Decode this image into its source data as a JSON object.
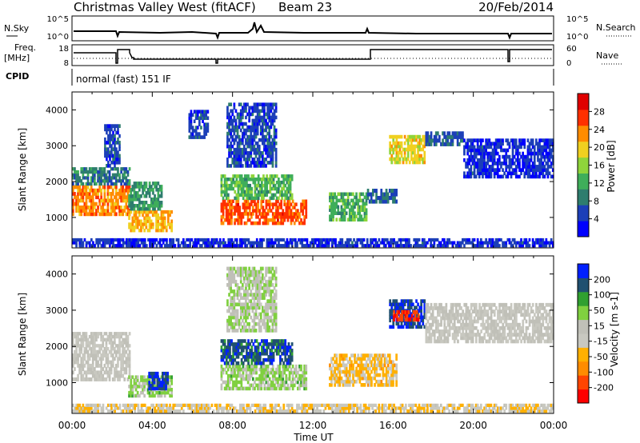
{
  "header": {
    "title": "Christmas Valley West (fitACF)",
    "beam": "Beam 23",
    "date": "20/Feb/2014"
  },
  "strips": {
    "nsky": {
      "left_label": "N.Sky",
      "left_ticks": [
        "10^5",
        "10^0"
      ],
      "right_label": "N.Search",
      "right_ticks": [
        "10^5",
        "10^0"
      ]
    },
    "freq": {
      "left_label": "Freq.",
      "left_unit": "[MHz]",
      "left_ticks": [
        "18",
        "8"
      ],
      "right_label": "Nave",
      "right_ticks": [
        "60",
        "0"
      ]
    },
    "cpid": {
      "label": "CPID",
      "value": "normal (fast) 151 IF"
    }
  },
  "x_axis": {
    "label": "Time UT",
    "ticks": [
      "00:00",
      "04:00",
      "08:00",
      "12:00",
      "16:00",
      "20:00",
      "00:00"
    ]
  },
  "colors": {
    "power_scale": [
      "#0000ff",
      "#1c3fb8",
      "#2e7d6e",
      "#3fae5a",
      "#8fd43b",
      "#f0d020",
      "#ff8c00",
      "#ff3000",
      "#e00000"
    ],
    "velocity_scale": [
      "#ff0000",
      "#ff4500",
      "#ff8c00",
      "#ffb000",
      "#c8c8c0",
      "#c0c0b8",
      "#80d040",
      "#30a030",
      "#205070",
      "#0020ff"
    ]
  },
  "chart_data": [
    {
      "type": "heatmap",
      "panel": "power",
      "ylabel": "Slant Range [km]",
      "y_ticks": [
        1000,
        2000,
        3000,
        4000
      ],
      "ylim": [
        150,
        4500
      ],
      "xlim_hours": [
        0,
        24
      ],
      "colorbar": {
        "label": "Power [dB]",
        "ticks": [
          "4",
          "8",
          "12",
          "16",
          "20",
          "24",
          "28"
        ],
        "range": [
          0,
          30
        ]
      },
      "regions": [
        {
          "t0": 0.0,
          "t1": 2.9,
          "r0": 1050,
          "r1": 1900,
          "v": 22
        },
        {
          "t0": 0.0,
          "t1": 2.9,
          "r0": 1900,
          "r1": 2400,
          "v": 8
        },
        {
          "t0": 1.6,
          "t1": 2.4,
          "r0": 2400,
          "r1": 3600,
          "v": 5
        },
        {
          "t0": 2.8,
          "t1": 5.0,
          "r0": 600,
          "r1": 1200,
          "v": 20
        },
        {
          "t0": 2.8,
          "t1": 4.5,
          "r0": 1200,
          "r1": 2000,
          "v": 10
        },
        {
          "t0": 5.8,
          "t1": 6.8,
          "r0": 3200,
          "r1": 4000,
          "v": 5
        },
        {
          "t0": 7.4,
          "t1": 11.7,
          "r0": 800,
          "r1": 1500,
          "v": 24
        },
        {
          "t0": 7.4,
          "t1": 11.0,
          "r0": 1500,
          "r1": 2200,
          "v": 12
        },
        {
          "t0": 7.7,
          "t1": 10.2,
          "r0": 2400,
          "r1": 4200,
          "v": 5
        },
        {
          "t0": 12.8,
          "t1": 14.7,
          "r0": 900,
          "r1": 1700,
          "v": 12
        },
        {
          "t0": 14.7,
          "t1": 16.2,
          "r0": 1400,
          "r1": 1800,
          "v": 6
        },
        {
          "t0": 15.8,
          "t1": 17.6,
          "r0": 2500,
          "r1": 3300,
          "v": 18
        },
        {
          "t0": 17.6,
          "t1": 19.5,
          "r0": 3000,
          "r1": 3400,
          "v": 6
        },
        {
          "t0": 19.5,
          "t1": 24.0,
          "r0": 2100,
          "r1": 3200,
          "v": 4
        },
        {
          "t0": 0.0,
          "t1": 24.0,
          "r0": 180,
          "r1": 420,
          "v": 4
        }
      ]
    },
    {
      "type": "heatmap",
      "panel": "velocity",
      "ylabel": "Slant Range [km]",
      "y_ticks": [
        1000,
        2000,
        3000,
        4000
      ],
      "ylim": [
        150,
        4500
      ],
      "xlim_hours": [
        0,
        24
      ],
      "colorbar": {
        "label": "Velocity [m s-1]",
        "ticks": [
          "-200",
          "-100",
          "-50",
          "-15",
          "15",
          "50",
          "100",
          "200"
        ],
        "range": [
          -250,
          250
        ]
      },
      "regions": [
        {
          "t0": 0.0,
          "t1": 2.9,
          "r0": 1050,
          "r1": 1900,
          "v": 0
        },
        {
          "t0": 0.0,
          "t1": 2.9,
          "r0": 1900,
          "r1": 2400,
          "v": 0
        },
        {
          "t0": 2.8,
          "t1": 5.0,
          "r0": 600,
          "r1": 1200,
          "v": 60
        },
        {
          "t0": 3.8,
          "t1": 4.8,
          "r0": 800,
          "r1": 1300,
          "v": 200
        },
        {
          "t0": 7.4,
          "t1": 11.7,
          "r0": 800,
          "r1": 1500,
          "v": 60
        },
        {
          "t0": 7.4,
          "t1": 11.0,
          "r0": 1500,
          "r1": 2200,
          "v": 180
        },
        {
          "t0": 7.7,
          "t1": 10.2,
          "r0": 2400,
          "r1": 4200,
          "v": 40
        },
        {
          "t0": 12.8,
          "t1": 16.2,
          "r0": 900,
          "r1": 1800,
          "v": -60
        },
        {
          "t0": 15.8,
          "t1": 17.6,
          "r0": 2500,
          "r1": 3300,
          "v": 200
        },
        {
          "t0": 16.0,
          "t1": 17.3,
          "r0": 2700,
          "r1": 3000,
          "v": -200
        },
        {
          "t0": 17.6,
          "t1": 24.0,
          "r0": 2100,
          "r1": 3200,
          "v": 0
        },
        {
          "t0": 0.0,
          "t1": 24.0,
          "r0": 180,
          "r1": 420,
          "v": -40
        }
      ]
    }
  ]
}
